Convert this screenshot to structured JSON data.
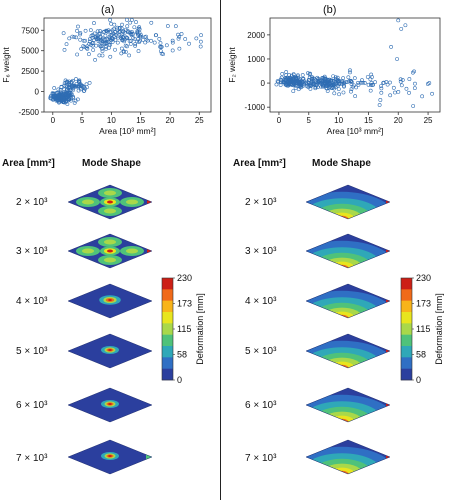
{
  "panels": [
    {
      "label": "(a)",
      "chart_data": {
        "type": "scatter",
        "xlabel": "Area [10³ mm²]",
        "ylabel": "F₆ weight",
        "xlim": [
          -1.5,
          27
        ],
        "ylim": [
          -2500,
          9000
        ],
        "xticks": [
          0,
          5,
          10,
          15,
          20,
          25
        ],
        "yticks": [
          -2500,
          0,
          2500,
          5000,
          7500
        ],
        "clusters": [
          {
            "xc": 1.5,
            "yc": -700,
            "sx": 1.0,
            "sy": 350,
            "n": 150
          },
          {
            "xc": 3.6,
            "yc": 700,
            "sx": 1.3,
            "sy": 550,
            "n": 70
          },
          {
            "xc": 9.0,
            "yc": 6400,
            "sx": 2.3,
            "sy": 900,
            "n": 140
          },
          {
            "xc": 13.5,
            "yc": 7200,
            "sx": 1.3,
            "sy": 700,
            "n": 45
          },
          {
            "xc": 18.5,
            "yc": 6200,
            "sx": 2.5,
            "sy": 800,
            "n": 35
          }
        ],
        "points": [
          [
            14.2,
            8500
          ],
          [
            2.0,
            5100
          ],
          [
            25.3,
            6900
          ],
          [
            24.5,
            6500
          ],
          [
            21.0,
            8000
          ]
        ]
      }
    },
    {
      "label": "(b)",
      "chart_data": {
        "type": "scatter",
        "xlabel": "Area [10³ mm²]",
        "ylabel": "F₂ weight",
        "xlim": [
          -1.5,
          27
        ],
        "ylim": [
          -1200,
          2700
        ],
        "xticks": [
          0,
          5,
          10,
          15,
          20,
          25
        ],
        "yticks": [
          -1000,
          0,
          1000,
          2000
        ],
        "clusters": [
          {
            "xc": 2.0,
            "yc": 100,
            "sx": 1.0,
            "sy": 130,
            "n": 120
          },
          {
            "xc": 7.0,
            "yc": 0,
            "sx": 2.8,
            "sy": 130,
            "n": 180
          },
          {
            "xc": 14.5,
            "yc": 0,
            "sx": 2.5,
            "sy": 220,
            "n": 40
          },
          {
            "xc": 20.5,
            "yc": -250,
            "sx": 2.3,
            "sy": 300,
            "n": 18
          }
        ],
        "points": [
          [
            20.0,
            2600
          ],
          [
            20.5,
            2250
          ],
          [
            21.2,
            2400
          ],
          [
            18.8,
            1500
          ],
          [
            19.8,
            1000
          ],
          [
            22.5,
            -950
          ],
          [
            24.0,
            -550
          ],
          [
            25.2,
            0
          ],
          [
            17.0,
            -700
          ]
        ]
      }
    }
  ],
  "headers": {
    "area": "Area [mm²]",
    "mode": "Mode Shape"
  },
  "areas": [
    "2 × 10³",
    "3 × 10³",
    "4 × 10³",
    "5 × 10³",
    "6 × 10³",
    "7 × 10³"
  ],
  "colorbar": {
    "label": "Deformation [mm]",
    "ticks": [
      "230",
      "173",
      "115",
      "58",
      "0"
    ],
    "colors": [
      "#cc1f16",
      "#f06a19",
      "#f8b41a",
      "#e8e51e",
      "#a9d84a",
      "#4fc27a",
      "#2fa8b8",
      "#2f6fc4",
      "#2b3f9e"
    ]
  }
}
